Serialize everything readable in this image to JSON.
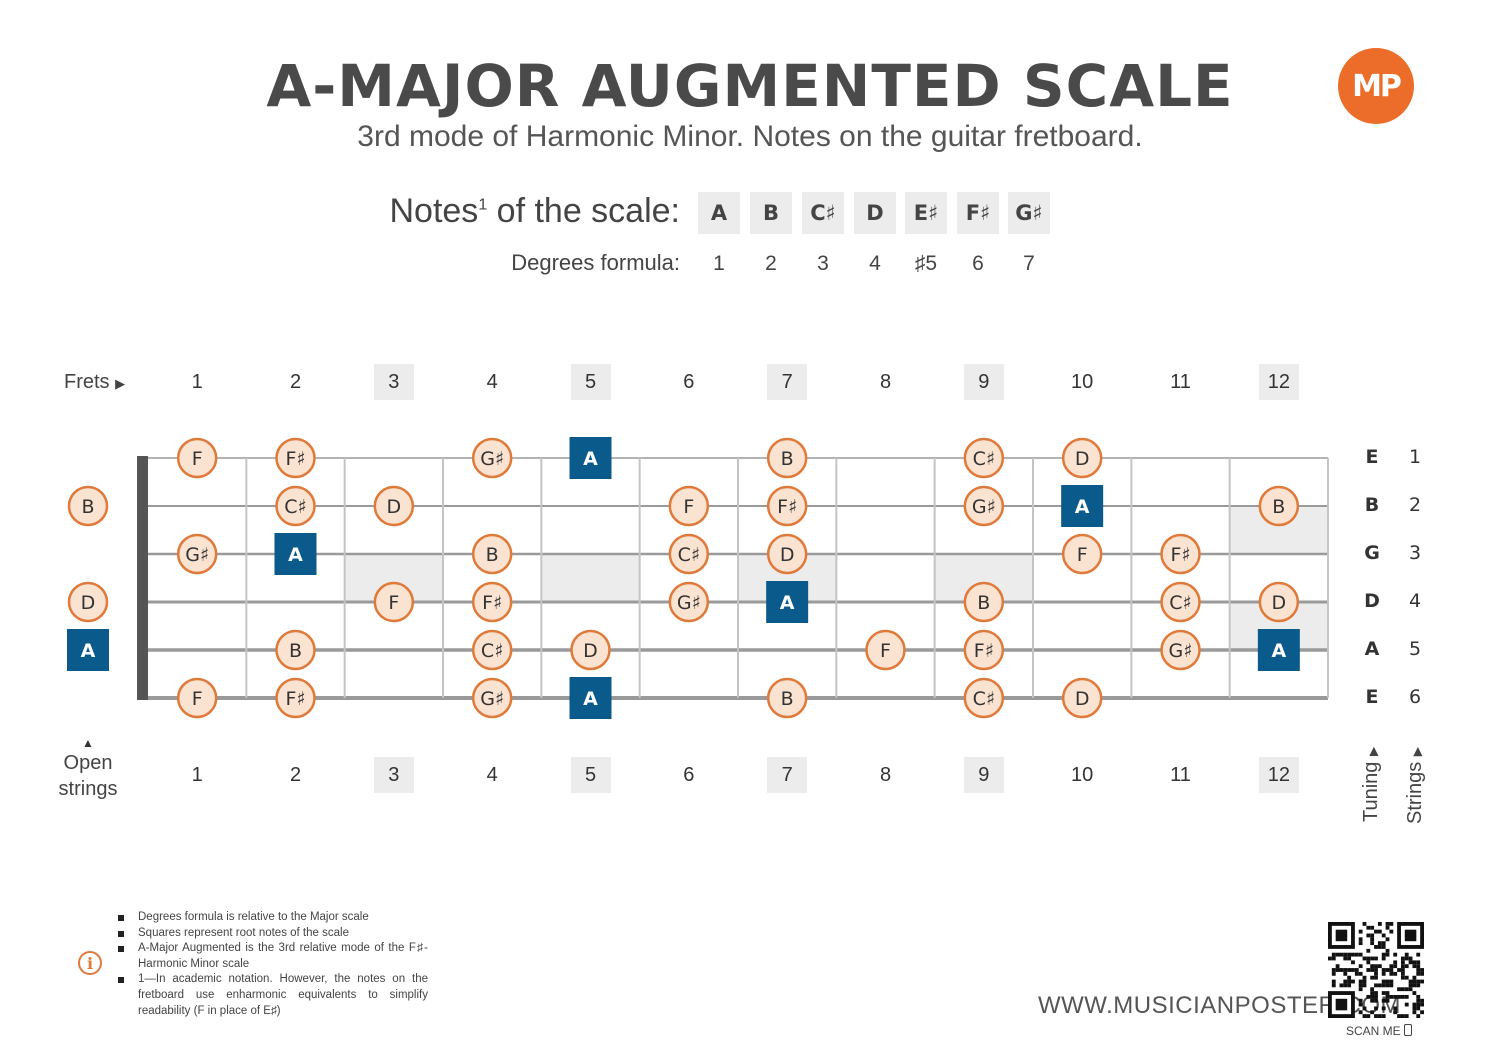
{
  "header": {
    "title": "A-MAJOR AUGMENTED SCALE",
    "subtitle": "3rd mode of Harmonic Minor. Notes on the guitar fretboard.",
    "logo_text": "MP"
  },
  "scale": {
    "notes_label": "Notes",
    "notes_label_sup": "1",
    "notes_label_tail": " of the scale:",
    "degrees_label": "Degrees formula:",
    "notes": [
      "A",
      "B",
      "C♯",
      "D",
      "E♯",
      "F♯",
      "G♯"
    ],
    "degrees": [
      "1",
      "2",
      "3",
      "4",
      "♯5",
      "6",
      "7"
    ]
  },
  "fretboard": {
    "frets_label": "Frets",
    "open_strings_label": "Open strings",
    "tuning_label": "Tuning",
    "strings_label": "Strings",
    "fret_numbers": [
      "1",
      "2",
      "3",
      "4",
      "5",
      "6",
      "7",
      "8",
      "9",
      "10",
      "11",
      "12"
    ],
    "marked_frets": [
      3,
      5,
      7,
      9,
      12
    ],
    "strings": [
      {
        "name": "E",
        "number": "1",
        "notes": [
          {
            "fret": 1,
            "note": "F"
          },
          {
            "fret": 2,
            "note": "F♯"
          },
          {
            "fret": 4,
            "note": "G♯"
          },
          {
            "fret": 5,
            "note": "A",
            "root": true
          },
          {
            "fret": 7,
            "note": "B"
          },
          {
            "fret": 9,
            "note": "C♯"
          },
          {
            "fret": 10,
            "note": "D"
          }
        ]
      },
      {
        "name": "B",
        "number": "2",
        "notes": [
          {
            "fret": 0,
            "note": "B"
          },
          {
            "fret": 2,
            "note": "C♯"
          },
          {
            "fret": 3,
            "note": "D"
          },
          {
            "fret": 6,
            "note": "F"
          },
          {
            "fret": 7,
            "note": "F♯"
          },
          {
            "fret": 9,
            "note": "G♯"
          },
          {
            "fret": 10,
            "note": "A",
            "root": true
          },
          {
            "fret": 12,
            "note": "B"
          }
        ]
      },
      {
        "name": "G",
        "number": "3",
        "notes": [
          {
            "fret": 1,
            "note": "G♯"
          },
          {
            "fret": 2,
            "note": "A",
            "root": true
          },
          {
            "fret": 4,
            "note": "B"
          },
          {
            "fret": 6,
            "note": "C♯"
          },
          {
            "fret": 7,
            "note": "D"
          },
          {
            "fret": 10,
            "note": "F"
          },
          {
            "fret": 11,
            "note": "F♯"
          }
        ]
      },
      {
        "name": "D",
        "number": "4",
        "notes": [
          {
            "fret": 0,
            "note": "D"
          },
          {
            "fret": 3,
            "note": "F"
          },
          {
            "fret": 4,
            "note": "F♯"
          },
          {
            "fret": 6,
            "note": "G♯"
          },
          {
            "fret": 7,
            "note": "A",
            "root": true
          },
          {
            "fret": 9,
            "note": "B"
          },
          {
            "fret": 11,
            "note": "C♯"
          },
          {
            "fret": 12,
            "note": "D"
          }
        ]
      },
      {
        "name": "A",
        "number": "5",
        "notes": [
          {
            "fret": 0,
            "note": "A",
            "root": true
          },
          {
            "fret": 2,
            "note": "B"
          },
          {
            "fret": 4,
            "note": "C♯"
          },
          {
            "fret": 5,
            "note": "D"
          },
          {
            "fret": 8,
            "note": "F"
          },
          {
            "fret": 9,
            "note": "F♯"
          },
          {
            "fret": 11,
            "note": "G♯"
          },
          {
            "fret": 12,
            "note": "A",
            "root": true
          }
        ]
      },
      {
        "name": "E",
        "number": "6",
        "notes": [
          {
            "fret": 1,
            "note": "F"
          },
          {
            "fret": 2,
            "note": "F♯"
          },
          {
            "fret": 4,
            "note": "G♯"
          },
          {
            "fret": 5,
            "note": "A",
            "root": true
          },
          {
            "fret": 7,
            "note": "B"
          },
          {
            "fret": 9,
            "note": "C♯"
          },
          {
            "fret": 10,
            "note": "D"
          }
        ]
      }
    ],
    "colors": {
      "root": "#0b5a8c",
      "note_fill": "#fbe3d2",
      "note_border": "#e07a3a",
      "string": "#9a9a9a",
      "nut": "#555555",
      "marker": "#ececec"
    }
  },
  "footnotes": [
    "Degrees formula is relative to the Major scale",
    "Squares represent root notes of the scale",
    "A-Major Augmented is the 3rd relative mode of the F♯-Harmonic Minor scale",
    "1—In academic notation. However, the notes on the fretboard use enharmonic equivalents to simplify readability (F in place of E♯)"
  ],
  "footer": {
    "website": "WWW.MUSICIANPOSTER.COM",
    "scan_me": "SCAN ME"
  }
}
